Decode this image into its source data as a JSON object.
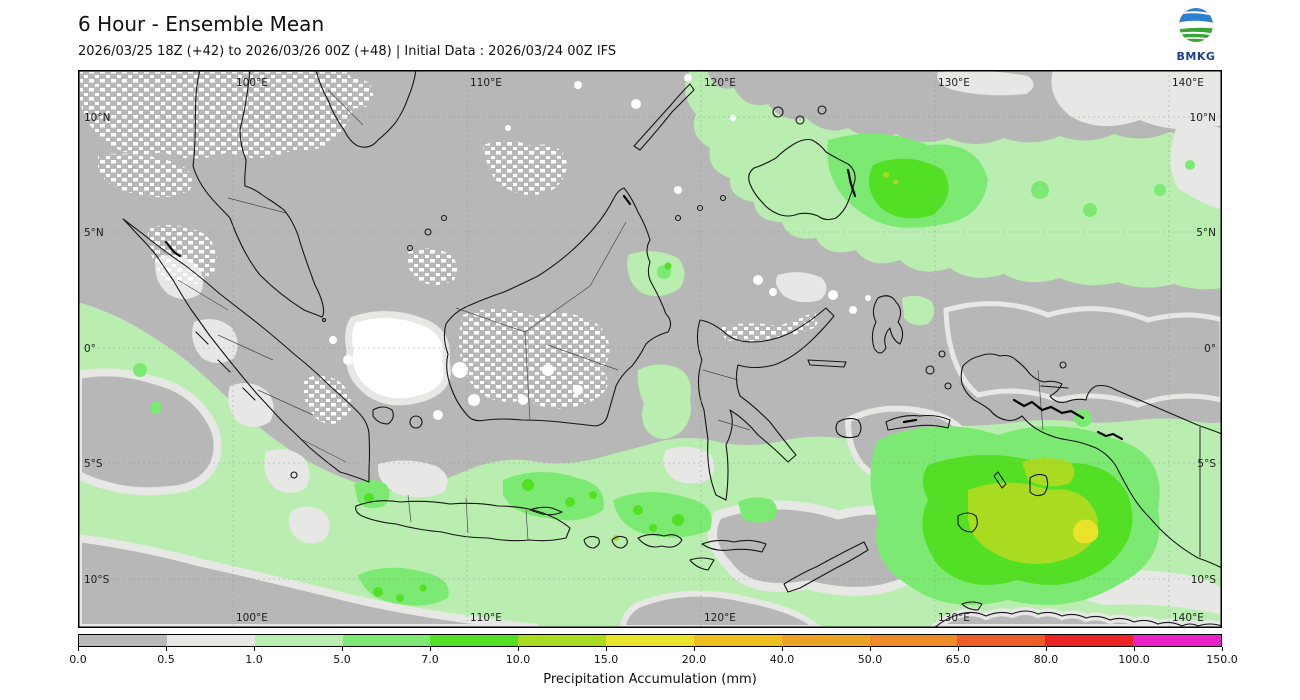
{
  "header": {
    "title": "6 Hour - Ensemble Mean",
    "subtitle": "2026/03/25 18Z (+42) to 2026/03/26 00Z (+48) | Initial Data : 2026/03/24 00Z IFS"
  },
  "logo": {
    "text": "BMKG"
  },
  "map": {
    "lon_labels": [
      "100°E",
      "110°E",
      "120°E",
      "130°E",
      "140°E"
    ],
    "lat_labels": [
      "10°N",
      "5°N",
      "0°",
      "5°S",
      "10°S"
    ]
  },
  "colorbar": {
    "label": "Precipitation Accumulation (mm)",
    "ticks": [
      "0.0",
      "0.5",
      "1.0",
      "5.0",
      "7.0",
      "10.0",
      "15.0",
      "20.0",
      "40.0",
      "50.0",
      "65.0",
      "80.0",
      "100.0",
      "150.0"
    ],
    "colors": [
      "#b9b9b9",
      "#e7e7e5",
      "#b9eeb0",
      "#7cea72",
      "#53df24",
      "#a9dc20",
      "#eae22b",
      "#ecc11e",
      "#eda426",
      "#ed8b28",
      "#ed5c28",
      "#ed2424",
      "#e822c8"
    ],
    "map_background": "#b7b7b7",
    "no_rain_color": "#ffffff"
  }
}
